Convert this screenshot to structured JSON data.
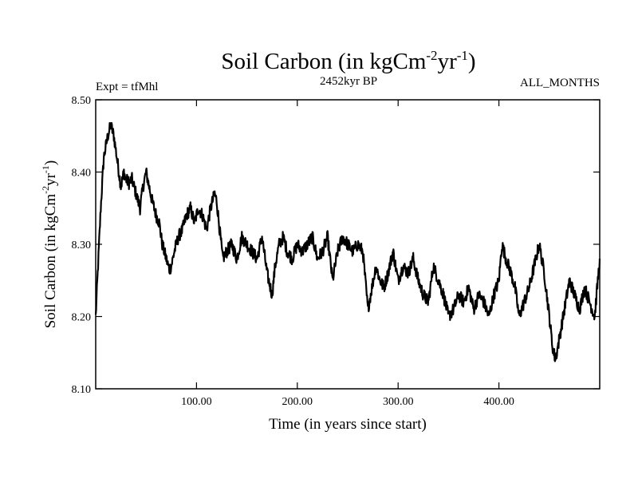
{
  "chart_data": {
    "type": "line",
    "title": {
      "main": "Soil Carbon (in kgCm",
      "sup1": "-2",
      "mid": "yr",
      "sup2": "-1",
      "end": ")"
    },
    "header_left": "Expt = tfMhl",
    "header_center": "2452kyr BP",
    "header_right": "ALL_MONTHS",
    "xlabel": "Time (in years since start)",
    "ylabel": {
      "main": "Soil Carbon (in kgCm",
      "sup1": "-2",
      "mid": "yr",
      "sup2": "-1",
      "end": ")"
    },
    "xlim": [
      0,
      500
    ],
    "ylim": [
      8.1,
      8.5
    ],
    "x_ticks": [
      100,
      200,
      300,
      400
    ],
    "x_tick_labels": [
      "100.00",
      "200.00",
      "300.00",
      "400.00"
    ],
    "y_ticks": [
      8.1,
      8.2,
      8.3,
      8.4,
      8.5
    ],
    "y_tick_labels": [
      "8.10",
      "8.20",
      "8.30",
      "8.40",
      "8.50"
    ],
    "grid": false,
    "line_color": "#000000",
    "series": [
      {
        "name": "Soil Carbon",
        "x": [
          0,
          2,
          5,
          8,
          12,
          15,
          18,
          22,
          25,
          28,
          30,
          33,
          36,
          40,
          44,
          47,
          50,
          53,
          56,
          60,
          63,
          66,
          70,
          73,
          75,
          78,
          82,
          86,
          90,
          94,
          98,
          102,
          106,
          110,
          114,
          118,
          120,
          123,
          126,
          130,
          135,
          140,
          145,
          150,
          155,
          160,
          165,
          170,
          175,
          178,
          182,
          186,
          190,
          195,
          200,
          205,
          210,
          215,
          220,
          225,
          230,
          235,
          240,
          245,
          250,
          255,
          260,
          265,
          270,
          274,
          278,
          282,
          286,
          290,
          295,
          300,
          305,
          310,
          315,
          320,
          325,
          330,
          335,
          340,
          345,
          350,
          355,
          360,
          365,
          370,
          375,
          380,
          385,
          390,
          395,
          400,
          403,
          407,
          412,
          416,
          420,
          425,
          430,
          435,
          440,
          445,
          450,
          453,
          456,
          460,
          465,
          470,
          475,
          480,
          485,
          490,
          495,
          500
        ],
        "y": [
          8.2,
          8.26,
          8.35,
          8.42,
          8.45,
          8.465,
          8.45,
          8.41,
          8.38,
          8.4,
          8.39,
          8.385,
          8.39,
          8.37,
          8.35,
          8.38,
          8.4,
          8.38,
          8.36,
          8.34,
          8.33,
          8.3,
          8.28,
          8.265,
          8.27,
          8.29,
          8.31,
          8.32,
          8.34,
          8.35,
          8.33,
          8.35,
          8.34,
          8.32,
          8.35,
          8.37,
          8.36,
          8.32,
          8.28,
          8.29,
          8.3,
          8.28,
          8.31,
          8.3,
          8.29,
          8.28,
          8.31,
          8.26,
          8.23,
          8.27,
          8.3,
          8.31,
          8.29,
          8.28,
          8.3,
          8.29,
          8.3,
          8.31,
          8.28,
          8.29,
          8.31,
          8.25,
          8.29,
          8.31,
          8.3,
          8.29,
          8.3,
          8.29,
          8.21,
          8.24,
          8.27,
          8.25,
          8.24,
          8.26,
          8.29,
          8.25,
          8.27,
          8.26,
          8.28,
          8.25,
          8.23,
          8.22,
          8.27,
          8.25,
          8.23,
          8.2,
          8.21,
          8.23,
          8.22,
          8.24,
          8.21,
          8.23,
          8.22,
          8.2,
          8.23,
          8.25,
          8.3,
          8.28,
          8.26,
          8.24,
          8.2,
          8.22,
          8.24,
          8.27,
          8.3,
          8.26,
          8.2,
          8.16,
          8.14,
          8.17,
          8.21,
          8.25,
          8.23,
          8.21,
          8.24,
          8.22,
          8.2,
          8.28
        ]
      }
    ]
  }
}
